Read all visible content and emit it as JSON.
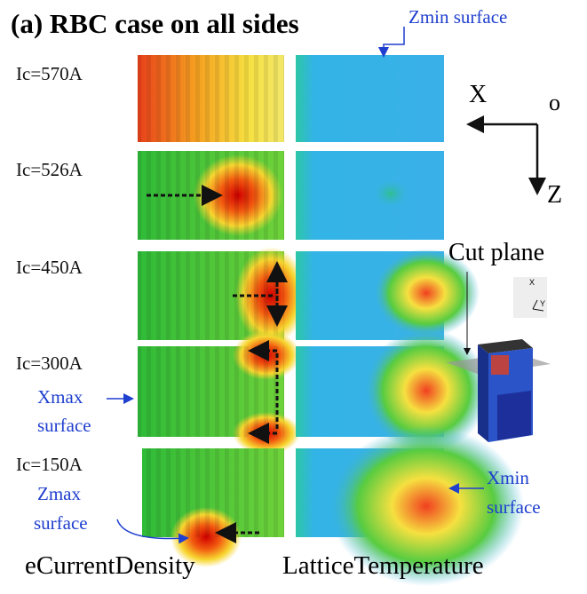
{
  "title": "(a) RBC case on all sides",
  "rows": [
    {
      "label": "Ic=570A"
    },
    {
      "label": "Ic=526A"
    },
    {
      "label": "Ic=450A"
    },
    {
      "label": "Ic=300A"
    },
    {
      "label": "Ic=150A"
    }
  ],
  "columns": [
    "eCurrentDensity",
    "LatticeTemperature"
  ],
  "annotations": {
    "zmin": "Zmin surface",
    "xmax": [
      "Xmax",
      "surface"
    ],
    "xmin": [
      "Xmin",
      "surface"
    ],
    "zmax": [
      "Zmax",
      "surface"
    ],
    "cut_plane": "Cut plane"
  },
  "axes": {
    "x": "X",
    "origin": "o",
    "z": "Z"
  },
  "inset_axes": {
    "x": "X",
    "y": "Y"
  }
}
